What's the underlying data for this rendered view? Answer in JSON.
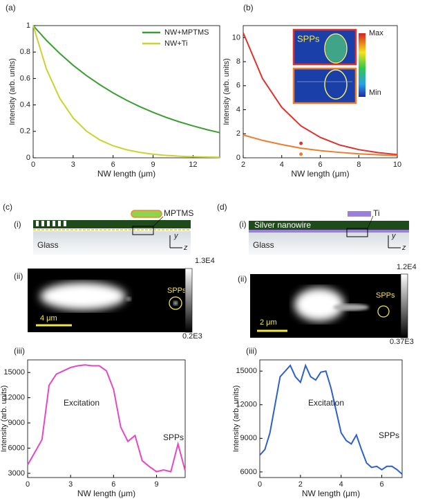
{
  "chart_data": [
    {
      "type": "line",
      "label": "(a)",
      "xlabel": "NW length (μm)",
      "ylabel": "Intensity (arb. units)",
      "xlim": [
        0,
        14
      ],
      "xticks": [
        0,
        3,
        6,
        9,
        12
      ],
      "ylim": [
        0,
        1
      ],
      "yticks": [
        0,
        0.2,
        0.4,
        0.6,
        0.8,
        1
      ],
      "legend": "upper right",
      "series": [
        {
          "name": "NW+MPTMS",
          "color": "#3a9e33",
          "x": [
            0,
            1,
            2,
            3,
            4,
            5,
            6,
            7,
            8,
            9,
            10,
            11,
            12,
            13,
            14
          ],
          "values": [
            1,
            0.888,
            0.789,
            0.7,
            0.622,
            0.553,
            0.491,
            0.436,
            0.387,
            0.344,
            0.305,
            0.271,
            0.241,
            0.214,
            0.19
          ]
        },
        {
          "name": "NW+Ti",
          "color": "#c8d42a",
          "x": [
            0,
            1,
            2,
            3,
            4,
            5,
            6,
            7,
            8,
            9,
            10,
            11,
            12,
            13,
            14
          ],
          "values": [
            1,
            0.67,
            0.449,
            0.301,
            0.202,
            0.135,
            0.091,
            0.061,
            0.041,
            0.027,
            0.018,
            0.012,
            0.008,
            0.006,
            0.004
          ]
        }
      ]
    },
    {
      "type": "line",
      "label": "(b)",
      "xlabel": "NW length (μm)",
      "ylabel": "Intensity (arb. units)",
      "xlim": [
        2,
        10
      ],
      "xticks": [
        2,
        4,
        6,
        8,
        10
      ],
      "ylim": [
        0,
        11
      ],
      "yticks": [
        0,
        2,
        4,
        6,
        8,
        10
      ],
      "annotations": [
        "SPPs",
        "Max",
        "Min"
      ],
      "series": [
        {
          "color": "#e0312b",
          "x": [
            2,
            3,
            4,
            5,
            6,
            7,
            8,
            9,
            10
          ],
          "values": [
            10.4,
            6.6,
            4.2,
            2.65,
            1.7,
            1.07,
            0.68,
            0.43,
            0.27
          ]
        },
        {
          "color": "#f07c2a",
          "x": [
            2,
            3,
            4,
            5,
            6,
            7,
            8,
            9,
            10
          ],
          "values": [
            1.9,
            1.45,
            1.1,
            0.8,
            0.6,
            0.45,
            0.33,
            0.25,
            0.18
          ]
        },
        {
          "type": "scatter",
          "color": "#e0312b",
          "x": [
            5
          ],
          "values": [
            1.2
          ]
        },
        {
          "type": "scatter",
          "color": "#f07c2a",
          "x": [
            5
          ],
          "values": [
            0.3
          ]
        }
      ]
    },
    {
      "type": "line",
      "label": "(iii)",
      "xlabel": "NW length (μm)",
      "ylabel": "Intensity (arb. units)",
      "xlim": [
        0,
        11
      ],
      "xticks": [
        0,
        3,
        6,
        9
      ],
      "ylim": [
        2500,
        16500
      ],
      "yticks": [
        3000,
        6000,
        9000,
        12000,
        15000
      ],
      "annotations": [
        "Excitation",
        "SPPs"
      ],
      "series": [
        {
          "color": "#e845c4",
          "x": [
            0,
            0.5,
            1,
            1.5,
            2,
            2.5,
            3,
            3.5,
            4,
            4.5,
            5,
            5.5,
            6,
            6.5,
            7,
            7.5,
            8,
            8.5,
            9,
            9.5,
            10,
            10.5,
            11
          ],
          "values": [
            4000,
            5500,
            7000,
            13500,
            14800,
            15200,
            15600,
            15800,
            15900,
            15800,
            15800,
            15200,
            13000,
            8500,
            6800,
            7500,
            4500,
            3800,
            3200,
            3400,
            3200,
            6500,
            3300
          ]
        }
      ]
    },
    {
      "type": "line",
      "label": "(iii)",
      "xlabel": "NW length (μm)",
      "ylabel": "Intensity (arb. units)",
      "xlim": [
        0,
        7
      ],
      "xticks": [
        0,
        2,
        4,
        6
      ],
      "ylim": [
        5500,
        16000
      ],
      "yticks": [
        6000,
        9000,
        12000,
        15000
      ],
      "annotations": [
        "Excitation",
        "SPPs"
      ],
      "series": [
        {
          "color": "#2b5fcf",
          "x": [
            0,
            0.25,
            0.5,
            0.75,
            1,
            1.25,
            1.5,
            1.75,
            2,
            2.25,
            2.5,
            2.75,
            3,
            3.25,
            3.5,
            3.75,
            4,
            4.25,
            4.5,
            4.75,
            5,
            5.25,
            5.5,
            5.75,
            6,
            6.25,
            6.5,
            6.75,
            7
          ],
          "values": [
            7500,
            8000,
            9500,
            12000,
            14500,
            15000,
            15500,
            14500,
            14000,
            15500,
            14500,
            14200,
            14900,
            15000,
            13500,
            11500,
            9500,
            8800,
            8500,
            9300,
            8000,
            6800,
            6400,
            6500,
            6200,
            6500,
            6500,
            6200,
            5800
          ]
        }
      ]
    }
  ],
  "panels": {
    "c": {
      "label": "(c)",
      "i": "(i)",
      "ii": "(ii)",
      "coating": "MPTMS",
      "substrate": "Glass",
      "axis_y": "y",
      "axis_z": "z",
      "cbar_max": "1.3E4",
      "cbar_min": "0.2E3",
      "spp": "SPPs",
      "scale": "4 μm"
    },
    "d": {
      "label": "(d)",
      "i": "(i)",
      "ii": "(ii)",
      "coating": "Ti",
      "wire": "Silver nanowire",
      "substrate": "Glass",
      "axis_y": "y",
      "axis_z": "z",
      "cbar_max": "1.2E4",
      "cbar_min": "0.37E3",
      "spp": "SPPs",
      "scale": "2 μm"
    }
  }
}
